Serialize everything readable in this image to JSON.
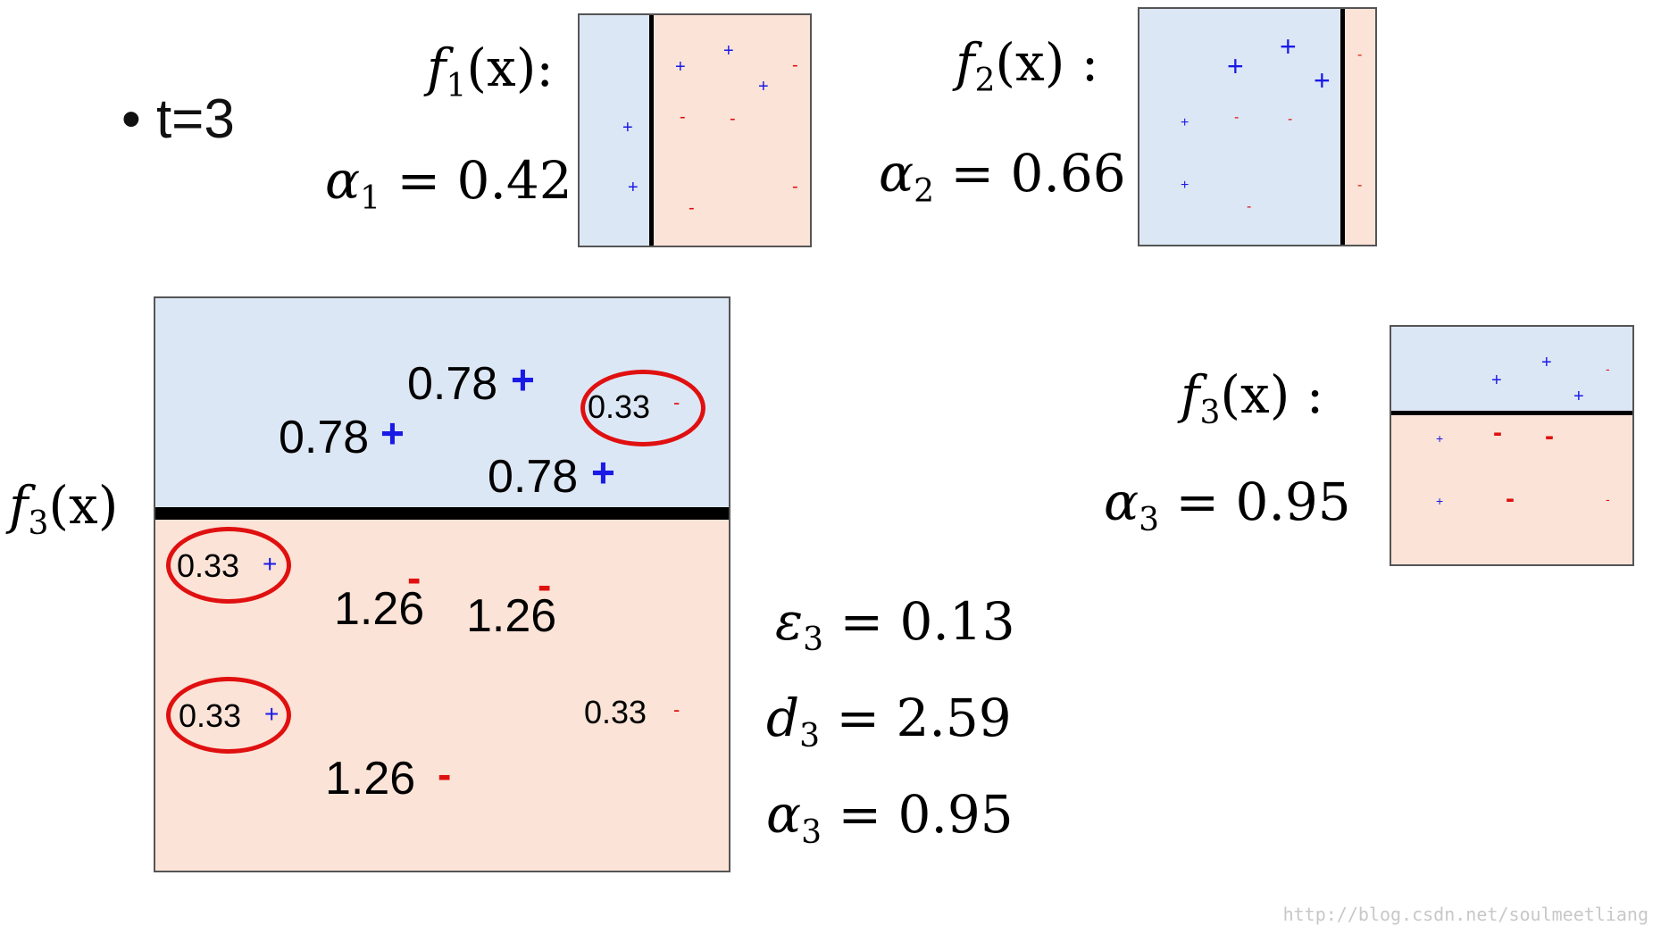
{
  "bullet": {
    "symbol": "•",
    "text": "t=3"
  },
  "top_left": {
    "fn_var": "f",
    "fn_sub": "1",
    "fn_arg": "(x):",
    "alpha_var": "α",
    "alpha_sub": "1",
    "alpha_val": "= 0.42"
  },
  "top_mid": {
    "fn_var": "f",
    "fn_sub": "2",
    "fn_arg": "(x) :",
    "alpha_var": "α",
    "alpha_sub": "2",
    "alpha_val": "= 0.66"
  },
  "right": {
    "fn_var": "f",
    "fn_sub": "3",
    "fn_arg": "(x) :",
    "alpha_var": "α",
    "alpha_sub": "3",
    "alpha_val": "= 0.95"
  },
  "main": {
    "side_label": {
      "var": "f",
      "sub": "3",
      "arg": "(x)"
    },
    "weights": [
      "0.78",
      "0.78",
      "0.78",
      "0.33",
      "0.33",
      "0.33",
      "0.33",
      "1.26",
      "1.26",
      "1.26"
    ],
    "signs": {
      "plus": "+",
      "minus": "-"
    }
  },
  "stats": {
    "eps": {
      "var": "ε",
      "sub": "3",
      "val": "= 0.13"
    },
    "d": {
      "var": "d",
      "sub": "3",
      "val": "= 2.59"
    },
    "alpha": {
      "var": "α",
      "sub": "3",
      "val": "= 0.95"
    }
  },
  "colors": {
    "positive_region": "#dce7f5",
    "negative_region": "#fbe3d7",
    "plus": "#1a1ae6",
    "minus": "#e01010",
    "highlight_ring": "#e01010"
  },
  "watermark": "http://blog.csdn.net/soulmeetliang"
}
